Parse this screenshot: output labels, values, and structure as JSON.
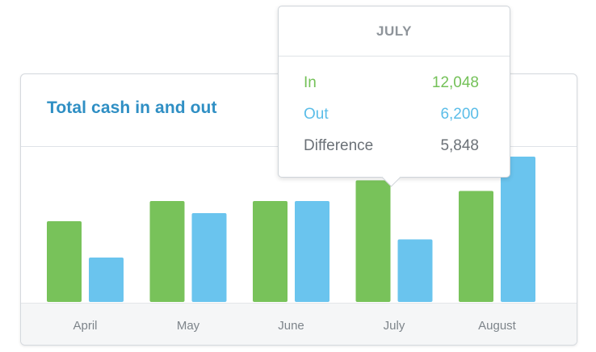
{
  "card": {
    "title": "Total cash in and out"
  },
  "tooltip": {
    "month": "JULY",
    "rows": [
      {
        "label": "In",
        "value": "12,048"
      },
      {
        "label": "Out",
        "value": "6,200"
      },
      {
        "label": "Difference",
        "value": "5,848"
      }
    ]
  },
  "colors": {
    "in": "#78c25a",
    "out": "#6ac4ee",
    "title": "#2f8fc4",
    "axis_text": "#7d848a"
  },
  "chart_data": {
    "type": "bar",
    "title": "Total cash in and out",
    "categories": [
      "April",
      "May",
      "June",
      "July",
      "August"
    ],
    "series": [
      {
        "name": "In",
        "values": [
          8000,
          10000,
          10000,
          12048,
          11000
        ]
      },
      {
        "name": "Out",
        "values": [
          4400,
          8800,
          10000,
          6200,
          14400
        ]
      }
    ],
    "ylim": [
      0,
      16000
    ],
    "grid": false,
    "legend": "none",
    "highlighted_category": "July"
  }
}
